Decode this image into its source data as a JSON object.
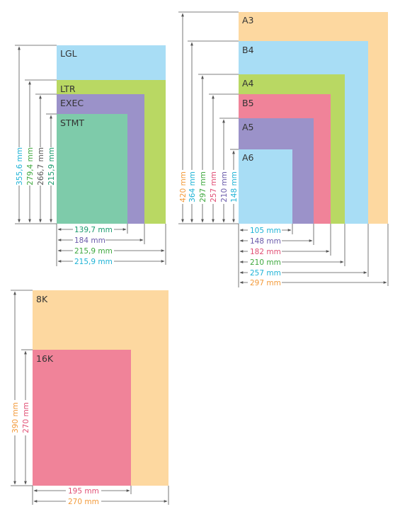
{
  "colors": {
    "lgl": "#a8ddf5",
    "ltr": "#b9d863",
    "exec": "#9b92c9",
    "stmt": "#7ecbaa",
    "a3": "#fdd8a0",
    "b4": "#a8ddf5",
    "a4": "#b9d863",
    "b5": "#f08399",
    "a5": "#9b92c9",
    "a6": "#a8ddf5",
    "k8": "#fdd8a0",
    "k16": "#f08399",
    "txt_cyan": "#1fb3d6",
    "txt_green": "#3ea83e",
    "txt_purple": "#6a5aaa",
    "txt_teal": "#1a9a6c",
    "txt_orange": "#f39a3a",
    "txt_pink": "#e04e74",
    "txt_dark": "#555555"
  },
  "us_group": {
    "labels": {
      "lgl": "LGL",
      "ltr": "LTR",
      "exec": "EXEC",
      "stmt": "STMT"
    },
    "heights": {
      "lgl": "355,6 mm",
      "ltr": "279,4 mm",
      "exec": "266,7 mm",
      "stmt": "215,9 mm"
    },
    "widths": {
      "stmt": "139,7 mm",
      "exec": "184 mm",
      "ltr": "215,9 mm",
      "lgl": "215,9 mm"
    }
  },
  "iso_group": {
    "labels": {
      "a3": "A3",
      "b4": "B4",
      "a4": "A4",
      "b5": "B5",
      "a5": "A5",
      "a6": "A6"
    },
    "heights": {
      "a3": "420 mm",
      "b4": "364 mm",
      "a4": "297 mm",
      "b5": "257 mm",
      "a5": "210 mm",
      "a6": "148 mm"
    },
    "widths": {
      "a6": "105 mm",
      "a5": "148 mm",
      "b5": "182 mm",
      "a4": "210 mm",
      "b4": "257 mm",
      "a3": "297 mm"
    }
  },
  "k_group": {
    "labels": {
      "k8": "8K",
      "k16": "16K"
    },
    "heights": {
      "k8": "390 mm",
      "k16": "270 mm"
    },
    "widths": {
      "k16": "195 mm",
      "k8": "270 mm"
    }
  }
}
